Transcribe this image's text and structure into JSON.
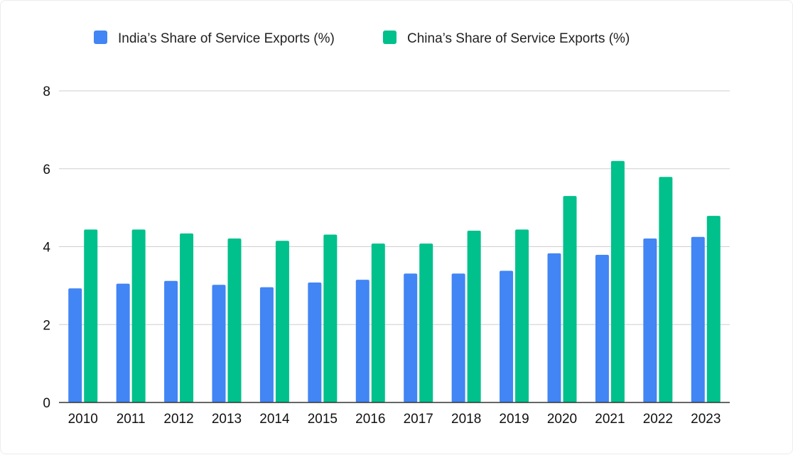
{
  "chart_data": {
    "type": "bar",
    "title": "",
    "xlabel": "",
    "ylabel": "",
    "ylim": [
      0,
      8
    ],
    "yticks": [
      "0",
      "2",
      "4",
      "6",
      "8"
    ],
    "grid": true,
    "legend_position": "top",
    "categories": [
      "2010",
      "2011",
      "2012",
      "2013",
      "2014",
      "2015",
      "2016",
      "2017",
      "2018",
      "2019",
      "2020",
      "2021",
      "2022",
      "2023"
    ],
    "series": [
      {
        "name": "India’s Share of Service Exports (%)",
        "color": "#4285f4",
        "values": [
          2.93,
          3.05,
          3.12,
          3.02,
          2.96,
          3.08,
          3.15,
          3.31,
          3.31,
          3.38,
          3.83,
          3.79,
          4.21,
          4.25
        ]
      },
      {
        "name": "China’s Share of Service Exports (%)",
        "color": "#00c08b",
        "values": [
          4.44,
          4.44,
          4.34,
          4.21,
          4.15,
          4.31,
          4.08,
          4.08,
          4.41,
          4.44,
          5.3,
          6.2,
          5.79,
          4.79
        ]
      }
    ]
  }
}
